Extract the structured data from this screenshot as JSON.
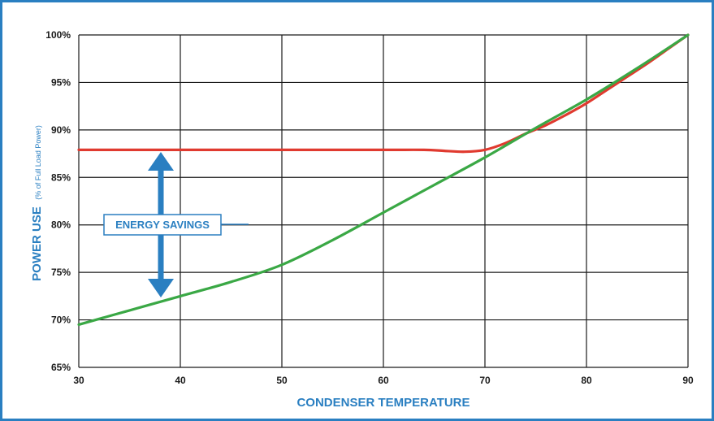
{
  "chart_data": {
    "type": "line",
    "xlabel": "CONDENSER TEMPERATURE",
    "ylabel": "POWER USE",
    "ylabel_note": "(% of Full Load Power)",
    "xlim": [
      30,
      90
    ],
    "ylim": [
      65,
      100
    ],
    "x_ticks": [
      "30",
      "40",
      "50",
      "60",
      "70",
      "80",
      "90"
    ],
    "y_ticks": [
      "65%",
      "70%",
      "75%",
      "80%",
      "85%",
      "90%",
      "95%",
      "100%"
    ],
    "x_tick_values": [
      30,
      40,
      50,
      60,
      70,
      80,
      90
    ],
    "y_tick_values": [
      65,
      70,
      75,
      80,
      85,
      90,
      95,
      100
    ],
    "grid": true,
    "annotation": "ENERGY SAVINGS",
    "colors": {
      "accent": "#2a7fc1",
      "red_series": "#e03a2f",
      "green_series": "#3aa845",
      "grid": "#1a1a1a"
    },
    "series": [
      {
        "color": "#e03a2f",
        "points": [
          [
            30,
            87.9
          ],
          [
            40,
            87.9
          ],
          [
            50,
            87.9
          ],
          [
            60,
            87.9
          ],
          [
            64,
            87.9
          ],
          [
            66,
            87.8
          ],
          [
            68,
            87.7
          ],
          [
            70,
            87.9
          ],
          [
            72,
            88.6
          ],
          [
            74,
            89.6
          ],
          [
            76,
            90.5
          ],
          [
            78,
            91.6
          ],
          [
            80,
            92.8
          ],
          [
            82,
            94.2
          ],
          [
            84,
            95.6
          ],
          [
            86,
            97.0
          ],
          [
            88,
            98.5
          ],
          [
            90,
            100
          ]
        ]
      },
      {
        "color": "#3aa845",
        "points": [
          [
            30,
            69.5
          ],
          [
            35,
            71.0
          ],
          [
            40,
            72.5
          ],
          [
            45,
            74.0
          ],
          [
            50,
            75.8
          ],
          [
            55,
            78.4
          ],
          [
            60,
            81.3
          ],
          [
            65,
            84.2
          ],
          [
            70,
            87.1
          ],
          [
            75,
            90.2
          ],
          [
            80,
            93.2
          ],
          [
            85,
            96.5
          ],
          [
            90,
            100
          ]
        ]
      }
    ]
  }
}
